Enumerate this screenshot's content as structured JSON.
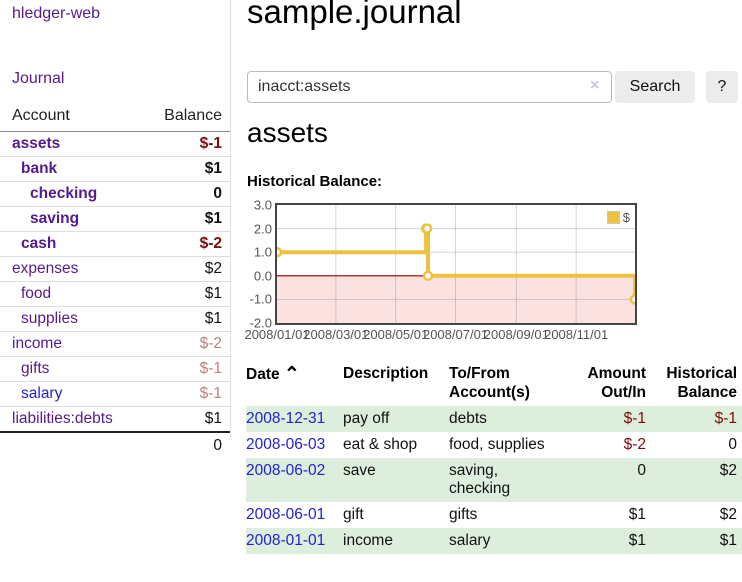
{
  "app": {
    "title": "hledger-web",
    "nav_journal": "Journal"
  },
  "sidebar": {
    "header": {
      "account": "Account",
      "balance": "Balance"
    },
    "accounts": [
      {
        "name": "assets",
        "balance": "$-1",
        "indent": 1,
        "bold": true,
        "neg": "strong"
      },
      {
        "name": "bank",
        "balance": "$1",
        "indent": 2,
        "bold": true,
        "neg": null
      },
      {
        "name": "checking",
        "balance": "0",
        "indent": 3,
        "bold": true,
        "neg": null
      },
      {
        "name": "saving",
        "balance": "$1",
        "indent": 3,
        "bold": true,
        "neg": null
      },
      {
        "name": "cash",
        "balance": "$-2",
        "indent": 2,
        "bold": true,
        "neg": "strong"
      },
      {
        "name": "expenses",
        "balance": "$2",
        "indent": 1,
        "bold": false,
        "neg": null
      },
      {
        "name": "food",
        "balance": "$1",
        "indent": 2,
        "bold": false,
        "neg": null
      },
      {
        "name": "supplies",
        "balance": "$1",
        "indent": 2,
        "bold": false,
        "neg": null
      },
      {
        "name": "income",
        "balance": "$-2",
        "indent": 1,
        "bold": false,
        "neg": "faded"
      },
      {
        "name": "gifts",
        "balance": "$-1",
        "indent": 2,
        "bold": false,
        "neg": "faded"
      },
      {
        "name": "salary",
        "balance": "$-1",
        "indent": 2,
        "bold": false,
        "neg": "faded",
        "link_blue": true
      },
      {
        "name": "liabilities:debts",
        "balance": "$1",
        "indent": 1,
        "bold": false,
        "neg": null,
        "last": true
      }
    ],
    "total": "0"
  },
  "main": {
    "title": "sample.journal",
    "search": {
      "value": "inacct:assets",
      "clear_icon": "×",
      "button_label": "Search",
      "help_label": "?"
    },
    "account_heading": "assets",
    "chart_label": "Historical Balance:"
  },
  "chart_data": {
    "type": "line",
    "step": true,
    "title": "Historical Balance:",
    "legend": "$",
    "legend_position": "top-right",
    "xlim": [
      0,
      365
    ],
    "ylim": [
      -2,
      3
    ],
    "x_ticks": [
      {
        "pos": 0,
        "label": "2008/01/01"
      },
      {
        "pos": 60,
        "label": "2008/03/01"
      },
      {
        "pos": 121,
        "label": "2008/05/01"
      },
      {
        "pos": 182,
        "label": "2008/07/01"
      },
      {
        "pos": 244,
        "label": "2008/09/01"
      },
      {
        "pos": 305,
        "label": "2008/11/01"
      }
    ],
    "y_ticks": [
      3.0,
      2.0,
      1.0,
      0.0,
      -1.0,
      -2.0
    ],
    "series": [
      {
        "name": "$",
        "color": "#edc240",
        "points_x_day": [
          0,
          152,
          153,
          154,
          365
        ],
        "points_y": [
          1,
          2,
          2,
          0,
          -1
        ]
      }
    ],
    "negative_region_fill": "#f6aaaa",
    "zero_line_color": "#8b0000",
    "grid": true
  },
  "register": {
    "sort_indicator": "⌃",
    "columns": [
      "Date",
      "Description",
      "To/From Account(s)",
      "Amount Out/In",
      "Historical Balance"
    ],
    "rows": [
      {
        "date": "2008-12-31",
        "description": "pay off",
        "accounts": "debts",
        "amount": "$-1",
        "amount_neg": true,
        "balance": "$-1",
        "balance_neg": true,
        "green": true
      },
      {
        "date": "2008-06-03",
        "description": "eat & shop",
        "accounts": "food, supplies",
        "amount": "$-2",
        "amount_neg": true,
        "balance": "0",
        "balance_neg": false,
        "green": false
      },
      {
        "date": "2008-06-02",
        "description": "save",
        "accounts": "saving,\nchecking",
        "amount": "0",
        "amount_neg": false,
        "balance": "$2",
        "balance_neg": false,
        "green": true
      },
      {
        "date": "2008-06-01",
        "description": "gift",
        "accounts": "gifts",
        "amount": "$1",
        "amount_neg": false,
        "balance": "$2",
        "balance_neg": false,
        "green": false
      },
      {
        "date": "2008-01-01",
        "description": "income",
        "accounts": "salary",
        "amount": "$1",
        "amount_neg": false,
        "balance": "$1",
        "balance_neg": false,
        "green": true
      }
    ]
  },
  "colors": {
    "link_purple": "#551a8b",
    "link_blue": "#2222cc",
    "negative_strong": "#7d0b0b",
    "negative_faded": "#c08181",
    "row_green": "#ddeedd",
    "chart_line": "#edc240",
    "chart_negative_fill": "#fbdddd",
    "zero_line": "#8b0000"
  }
}
